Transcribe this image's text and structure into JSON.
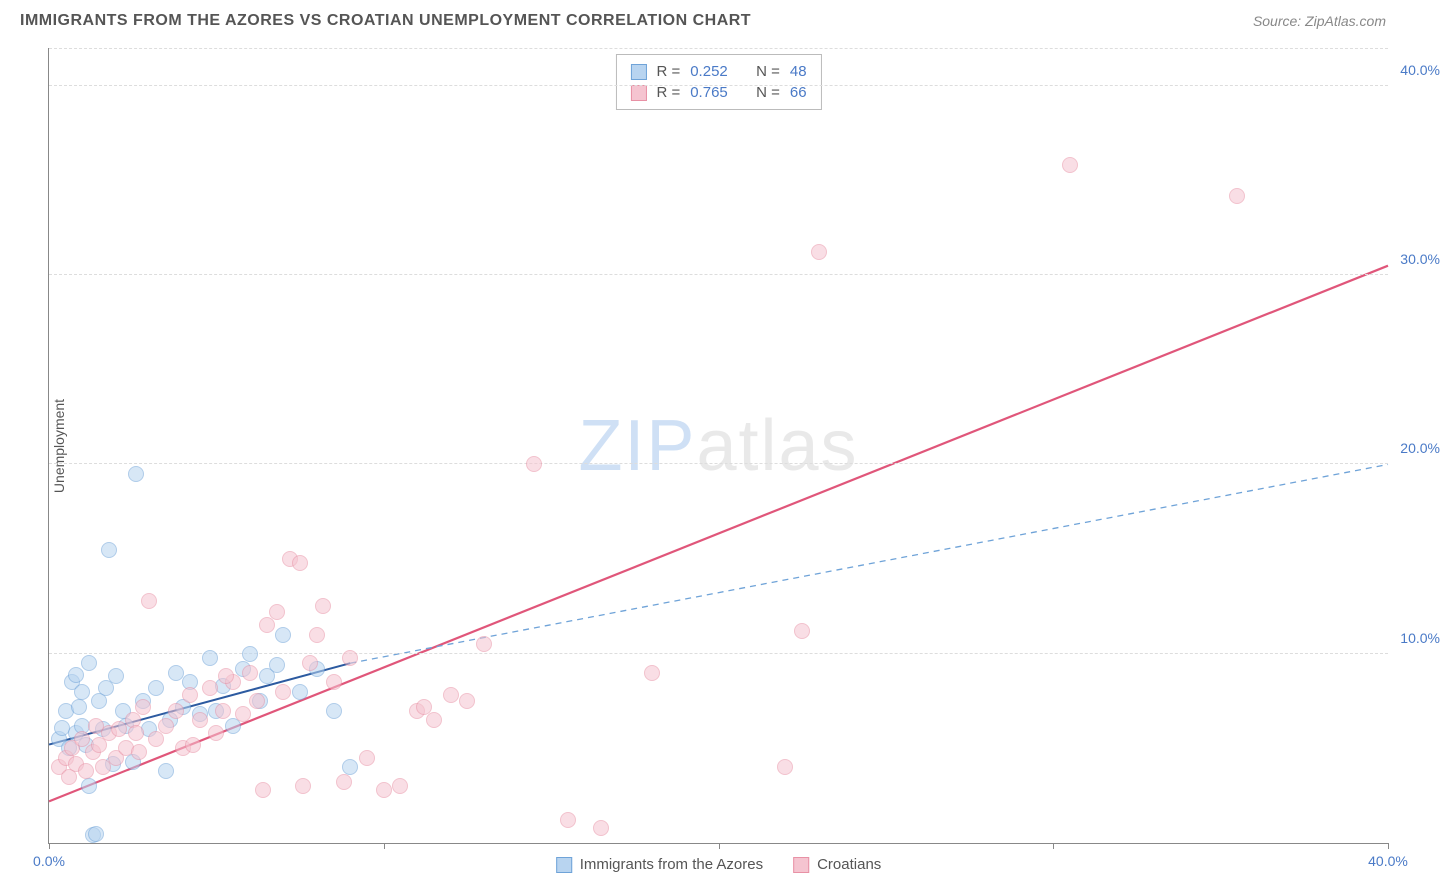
{
  "header": {
    "title": "IMMIGRANTS FROM THE AZORES VS CROATIAN UNEMPLOYMENT CORRELATION CHART",
    "source_prefix": "Source: ",
    "source_name": "ZipAtlas.com"
  },
  "watermark": {
    "zip": "ZIP",
    "atlas": "atlas"
  },
  "chart": {
    "type": "scatter",
    "ylabel": "Unemployment",
    "xlim": [
      0,
      40
    ],
    "ylim": [
      0,
      42
    ],
    "x_ticks": [
      0,
      10,
      20,
      30,
      40
    ],
    "y_ticks": [
      10,
      20,
      30,
      40
    ],
    "x_tick_labels": [
      "0.0%",
      "",
      "",
      "",
      "40.0%"
    ],
    "y_tick_labels": [
      "10.0%",
      "20.0%",
      "30.0%",
      "40.0%"
    ],
    "background_color": "#ffffff",
    "grid_color": "#dddddd",
    "axis_color": "#888888",
    "tick_label_color": "#4a7ac7",
    "series": [
      {
        "name": "Immigrants from the Azores",
        "color_fill": "#b8d4f0",
        "color_border": "#6fa3d8",
        "r": 0.252,
        "n": 48,
        "trend_solid": {
          "x1": 0,
          "y1": 5.2,
          "x2": 9,
          "y2": 9.5,
          "color": "#2c5aa0",
          "width": 2
        },
        "trend_dash": {
          "x1": 9,
          "y1": 9.5,
          "x2": 40,
          "y2": 20.0,
          "color": "#6fa3d8",
          "width": 1.3,
          "dash": "6,5"
        },
        "points": [
          [
            0.3,
            5.5
          ],
          [
            0.4,
            6.1
          ],
          [
            0.5,
            7.0
          ],
          [
            0.6,
            5.0
          ],
          [
            0.7,
            8.5
          ],
          [
            0.8,
            5.8
          ],
          [
            0.8,
            8.9
          ],
          [
            0.9,
            7.2
          ],
          [
            1.0,
            6.2
          ],
          [
            1.0,
            8.0
          ],
          [
            1.1,
            5.2
          ],
          [
            1.2,
            9.5
          ],
          [
            1.2,
            3.0
          ],
          [
            1.3,
            0.4
          ],
          [
            1.4,
            0.5
          ],
          [
            1.5,
            7.5
          ],
          [
            1.6,
            6.0
          ],
          [
            1.7,
            8.2
          ],
          [
            1.8,
            15.5
          ],
          [
            1.9,
            4.2
          ],
          [
            2.0,
            8.8
          ],
          [
            2.2,
            7.0
          ],
          [
            2.3,
            6.2
          ],
          [
            2.5,
            4.3
          ],
          [
            2.6,
            19.5
          ],
          [
            2.8,
            7.5
          ],
          [
            3.0,
            6.0
          ],
          [
            3.2,
            8.2
          ],
          [
            3.5,
            3.8
          ],
          [
            3.6,
            6.5
          ],
          [
            3.8,
            9.0
          ],
          [
            4.0,
            7.2
          ],
          [
            4.2,
            8.5
          ],
          [
            4.5,
            6.8
          ],
          [
            4.8,
            9.8
          ],
          [
            5.0,
            7.0
          ],
          [
            5.2,
            8.3
          ],
          [
            5.5,
            6.2
          ],
          [
            5.8,
            9.2
          ],
          [
            6.0,
            10.0
          ],
          [
            6.3,
            7.5
          ],
          [
            6.5,
            8.8
          ],
          [
            6.8,
            9.4
          ],
          [
            7.0,
            11.0
          ],
          [
            7.5,
            8.0
          ],
          [
            8.0,
            9.2
          ],
          [
            8.5,
            7.0
          ],
          [
            9.0,
            4.0
          ]
        ]
      },
      {
        "name": "Croatians",
        "color_fill": "#f5c4d0",
        "color_border": "#e891a5",
        "r": 0.765,
        "n": 66,
        "trend_solid": {
          "x1": 0,
          "y1": 2.2,
          "x2": 40,
          "y2": 30.5,
          "color": "#e0567a",
          "width": 2.2
        },
        "points": [
          [
            0.3,
            4.0
          ],
          [
            0.5,
            4.5
          ],
          [
            0.7,
            5.0
          ],
          [
            0.8,
            4.2
          ],
          [
            1.0,
            5.5
          ],
          [
            1.1,
            3.8
          ],
          [
            1.3,
            4.8
          ],
          [
            1.5,
            5.2
          ],
          [
            1.6,
            4.0
          ],
          [
            1.8,
            5.8
          ],
          [
            2.0,
            4.5
          ],
          [
            2.1,
            6.0
          ],
          [
            2.3,
            5.0
          ],
          [
            2.5,
            6.5
          ],
          [
            2.7,
            4.8
          ],
          [
            2.8,
            7.2
          ],
          [
            3.0,
            12.8
          ],
          [
            3.2,
            5.5
          ],
          [
            3.5,
            6.2
          ],
          [
            3.8,
            7.0
          ],
          [
            4.0,
            5.0
          ],
          [
            4.2,
            7.8
          ],
          [
            4.5,
            6.5
          ],
          [
            4.8,
            8.2
          ],
          [
            5.0,
            5.8
          ],
          [
            5.2,
            7.0
          ],
          [
            5.5,
            8.5
          ],
          [
            5.8,
            6.8
          ],
          [
            6.0,
            9.0
          ],
          [
            6.2,
            7.5
          ],
          [
            6.5,
            11.5
          ],
          [
            6.8,
            12.2
          ],
          [
            7.0,
            8.0
          ],
          [
            7.2,
            15.0
          ],
          [
            7.5,
            14.8
          ],
          [
            7.8,
            9.5
          ],
          [
            8.0,
            11.0
          ],
          [
            8.2,
            12.5
          ],
          [
            8.5,
            8.5
          ],
          [
            8.8,
            3.2
          ],
          [
            9.0,
            9.8
          ],
          [
            9.5,
            4.5
          ],
          [
            10.0,
            2.8
          ],
          [
            10.5,
            3.0
          ],
          [
            11.0,
            7.0
          ],
          [
            11.2,
            7.2
          ],
          [
            11.5,
            6.5
          ],
          [
            12.0,
            7.8
          ],
          [
            12.5,
            7.5
          ],
          [
            13.0,
            10.5
          ],
          [
            14.5,
            20.0
          ],
          [
            15.5,
            1.2
          ],
          [
            16.5,
            0.8
          ],
          [
            18.0,
            9.0
          ],
          [
            22.0,
            4.0
          ],
          [
            22.5,
            11.2
          ],
          [
            23.0,
            31.2
          ],
          [
            30.5,
            35.8
          ],
          [
            35.5,
            34.2
          ],
          [
            0.6,
            3.5
          ],
          [
            1.4,
            6.2
          ],
          [
            2.6,
            5.8
          ],
          [
            4.3,
            5.2
          ],
          [
            5.3,
            8.8
          ],
          [
            6.4,
            2.8
          ],
          [
            7.6,
            3.0
          ]
        ]
      }
    ]
  },
  "legend_top_labels": {
    "r": "R =",
    "n": "N ="
  },
  "legend_bottom": [
    {
      "label": "Immigrants from the Azores",
      "fill": "#b8d4f0",
      "border": "#6fa3d8"
    },
    {
      "label": "Croatians",
      "fill": "#f5c4d0",
      "border": "#e891a5"
    }
  ]
}
